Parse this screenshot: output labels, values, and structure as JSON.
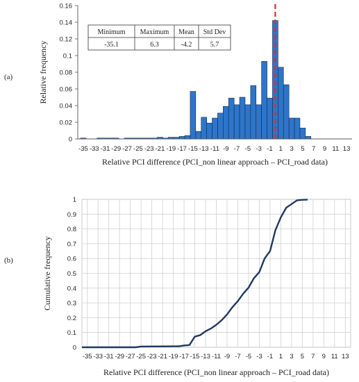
{
  "panels": {
    "a_label": "(a)",
    "b_label": "(b)"
  },
  "stats_table": {
    "headers": [
      "Minimum",
      "Maximum",
      "Mean",
      "Std Dev"
    ],
    "values": [
      "-35.1",
      "6.3",
      "-4.2",
      "5.7"
    ]
  },
  "colors": {
    "bar_fill": "#2E75C9",
    "bar_stroke": "#0d2a55",
    "cdf_line": "#1f3864",
    "ref_line": "#e8262a",
    "grid": "#d0d0d0"
  },
  "chart_data": [
    {
      "type": "bar",
      "xlabel": "Relative PCI difference (PCI_non linear approach – PCI_road data)",
      "ylabel": "Relative frequency",
      "ylim": [
        0,
        0.16
      ],
      "yticks": [
        "0",
        "0.02",
        "0.04",
        "0.06",
        "0.08",
        "0.1",
        "0.12",
        "0.14",
        "0.16"
      ],
      "xticks": [
        "-35",
        "-33",
        "-31",
        "-29",
        "-27",
        "-25",
        "-23",
        "-21",
        "-19",
        "-17",
        "-15",
        "-13",
        "-11",
        "-9",
        "-7",
        "-5",
        "-3",
        "-1",
        "1",
        "3",
        "5",
        "7",
        "9",
        "11",
        "13"
      ],
      "xlim": [
        -36,
        14
      ],
      "bin_width": 1,
      "reference_line": {
        "x": 0,
        "style": "dashed"
      },
      "bars": [
        {
          "x": -35,
          "y": 0.001
        },
        {
          "x": -32,
          "y": 0.001
        },
        {
          "x": -31,
          "y": 0.001
        },
        {
          "x": -30,
          "y": 0.001
        },
        {
          "x": -29,
          "y": 0.001
        },
        {
          "x": -27,
          "y": 0.001
        },
        {
          "x": -26,
          "y": 0.001
        },
        {
          "x": -25,
          "y": 0.001
        },
        {
          "x": -24,
          "y": 0.001
        },
        {
          "x": -23,
          "y": 0.001
        },
        {
          "x": -22,
          "y": 0.001
        },
        {
          "x": -21,
          "y": 0.002
        },
        {
          "x": -20,
          "y": 0.001
        },
        {
          "x": -19,
          "y": 0.002
        },
        {
          "x": -18,
          "y": 0.002
        },
        {
          "x": -17,
          "y": 0.003
        },
        {
          "x": -16,
          "y": 0.004
        },
        {
          "x": -15,
          "y": 0.057
        },
        {
          "x": -14,
          "y": 0.009
        },
        {
          "x": -13,
          "y": 0.026
        },
        {
          "x": -12,
          "y": 0.019
        },
        {
          "x": -11,
          "y": 0.025
        },
        {
          "x": -10,
          "y": 0.031
        },
        {
          "x": -9,
          "y": 0.039
        },
        {
          "x": -8,
          "y": 0.049
        },
        {
          "x": -7,
          "y": 0.041
        },
        {
          "x": -6,
          "y": 0.05
        },
        {
          "x": -5,
          "y": 0.041
        },
        {
          "x": -4,
          "y": 0.064
        },
        {
          "x": -3,
          "y": 0.041
        },
        {
          "x": -2,
          "y": 0.093
        },
        {
          "x": -1,
          "y": 0.049
        },
        {
          "x": 0,
          "y": 0.142
        },
        {
          "x": 1,
          "y": 0.086
        },
        {
          "x": 2,
          "y": 0.065
        },
        {
          "x": 3,
          "y": 0.025
        },
        {
          "x": 4,
          "y": 0.025
        },
        {
          "x": 5,
          "y": 0.013
        },
        {
          "x": 6,
          "y": 0.003
        }
      ]
    },
    {
      "type": "line",
      "xlabel": "Relative PCI difference (PCI_non linear approach – PCI_road data)",
      "ylabel": "Cumulative frequency",
      "ylim": [
        0,
        1
      ],
      "yticks": [
        "0",
        "0.1",
        "0.2",
        "0.3",
        "0.4",
        "0.5",
        "0.6",
        "0.7",
        "0.8",
        "0.9",
        "1"
      ],
      "xticks": [
        "-35",
        "-33",
        "-31",
        "-29",
        "-27",
        "-25",
        "-23",
        "-21",
        "-19",
        "-17",
        "-15",
        "-13",
        "-11",
        "-9",
        "-7",
        "-5",
        "-3",
        "-1",
        "1",
        "3",
        "5",
        "7",
        "9",
        "11",
        "13"
      ],
      "xlim": [
        -36,
        14
      ],
      "grid": true,
      "x": [
        -36,
        -26,
        -25,
        -18,
        -17,
        -16,
        -15,
        -14,
        -13,
        -12,
        -11,
        -10,
        -9,
        -8,
        -7,
        -6,
        -5,
        -4,
        -3,
        -2,
        -1,
        0,
        1,
        2,
        3,
        4,
        5,
        6
      ],
      "y": [
        0.0,
        0.0,
        0.005,
        0.007,
        0.012,
        0.015,
        0.072,
        0.082,
        0.108,
        0.127,
        0.152,
        0.183,
        0.222,
        0.271,
        0.312,
        0.362,
        0.403,
        0.467,
        0.508,
        0.601,
        0.65,
        0.792,
        0.878,
        0.943,
        0.968,
        0.993,
        0.997,
        0.998
      ]
    }
  ]
}
